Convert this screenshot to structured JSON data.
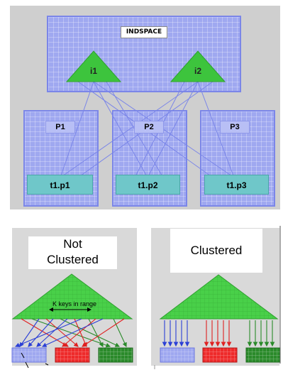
{
  "top": {
    "indspace_label": "INDSPACE",
    "indexes": [
      "i1",
      "i2"
    ],
    "partitions": [
      "P1",
      "P2",
      "P3"
    ],
    "tables": [
      "t1.p1",
      "t1.p2",
      "t1.p3"
    ]
  },
  "bottom": {
    "left_title_line1": "Not",
    "left_title_line2": "Clustered",
    "range_label": "K keys in range",
    "right_title": "Clustered"
  },
  "colors": {
    "grid_blue": "#9fa8f0",
    "index_green": "#3dc43d",
    "table_teal": "#6fc7c9",
    "arrow_blue": "#2b3fd6",
    "arrow_red": "#e02020",
    "arrow_green": "#2a8a2a"
  }
}
